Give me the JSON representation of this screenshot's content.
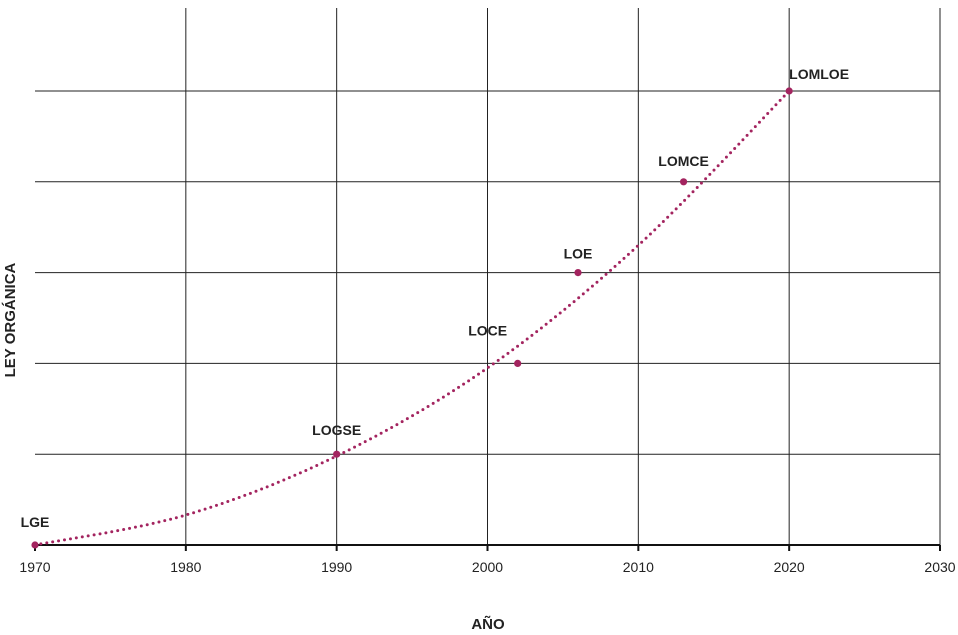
{
  "chart_data": {
    "type": "scatter",
    "xlabel": "AÑO",
    "ylabel": "LEY ORGÁNICA",
    "xlim": [
      1970,
      2030
    ],
    "ylim": [
      0,
      5
    ],
    "xticks": [
      1970,
      1980,
      1990,
      2000,
      2010,
      2020,
      2030
    ],
    "yticks": [
      0,
      1,
      2,
      3,
      4,
      5
    ],
    "grid": true,
    "legend": "none",
    "colors": {
      "points": "#a3245f",
      "trend": "#a3245f"
    },
    "points": [
      {
        "label": "LGE",
        "x": 1970,
        "y": 0
      },
      {
        "label": "LOGSE",
        "x": 1990,
        "y": 1
      },
      {
        "label": "LOCE",
        "x": 2002,
        "y": 2
      },
      {
        "label": "LOE",
        "x": 2006,
        "y": 3
      },
      {
        "label": "LOMCE",
        "x": 2013,
        "y": 4
      },
      {
        "label": "LOMLOE",
        "x": 2020,
        "y": 5
      }
    ],
    "trendline": {
      "style": "dotted",
      "x": [
        1970,
        1980,
        1990,
        2000,
        2010,
        2020
      ],
      "y": [
        0,
        0.33,
        0.98,
        1.95,
        3.3,
        5.0
      ]
    }
  }
}
